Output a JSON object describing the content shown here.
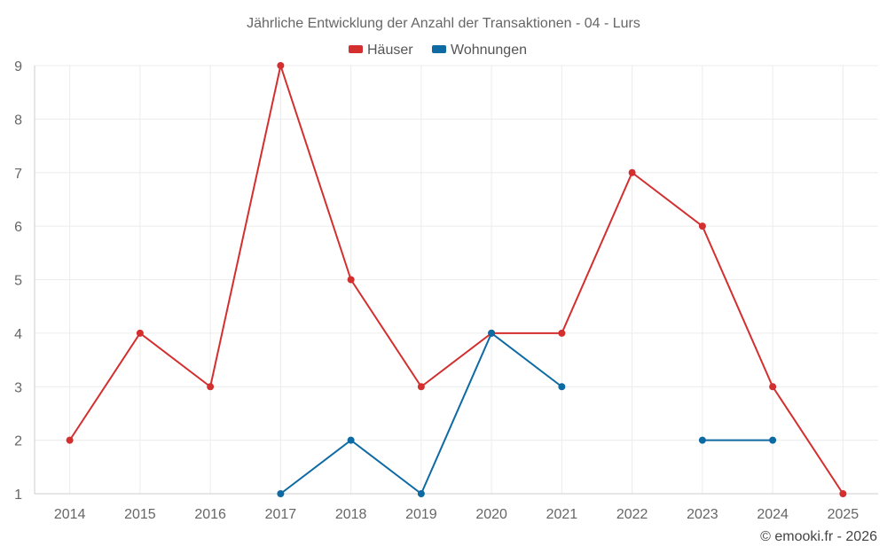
{
  "chart_data": {
    "type": "line",
    "title": "Jährliche Entwicklung der Anzahl der Transaktionen - 04 - Lurs",
    "categories": [
      "2014",
      "2015",
      "2016",
      "2017",
      "2018",
      "2019",
      "2020",
      "2021",
      "2022",
      "2023",
      "2024",
      "2025"
    ],
    "y_ticks": [
      "1",
      "2",
      "3",
      "4",
      "5",
      "6",
      "7",
      "8",
      "9"
    ],
    "ylim": [
      1,
      9
    ],
    "grid": true,
    "legend_position": "top-center",
    "series": [
      {
        "name": "Häuser",
        "color": "#d32f2f",
        "values": [
          2,
          4,
          3,
          9,
          5,
          3,
          4,
          4,
          7,
          6,
          3,
          1
        ]
      },
      {
        "name": "Wohnungen",
        "color": "#0d6aa3",
        "values": [
          null,
          null,
          null,
          1,
          2,
          1,
          4,
          3,
          null,
          2,
          2,
          null
        ]
      }
    ],
    "credit": "© emooki.fr - 2026"
  }
}
